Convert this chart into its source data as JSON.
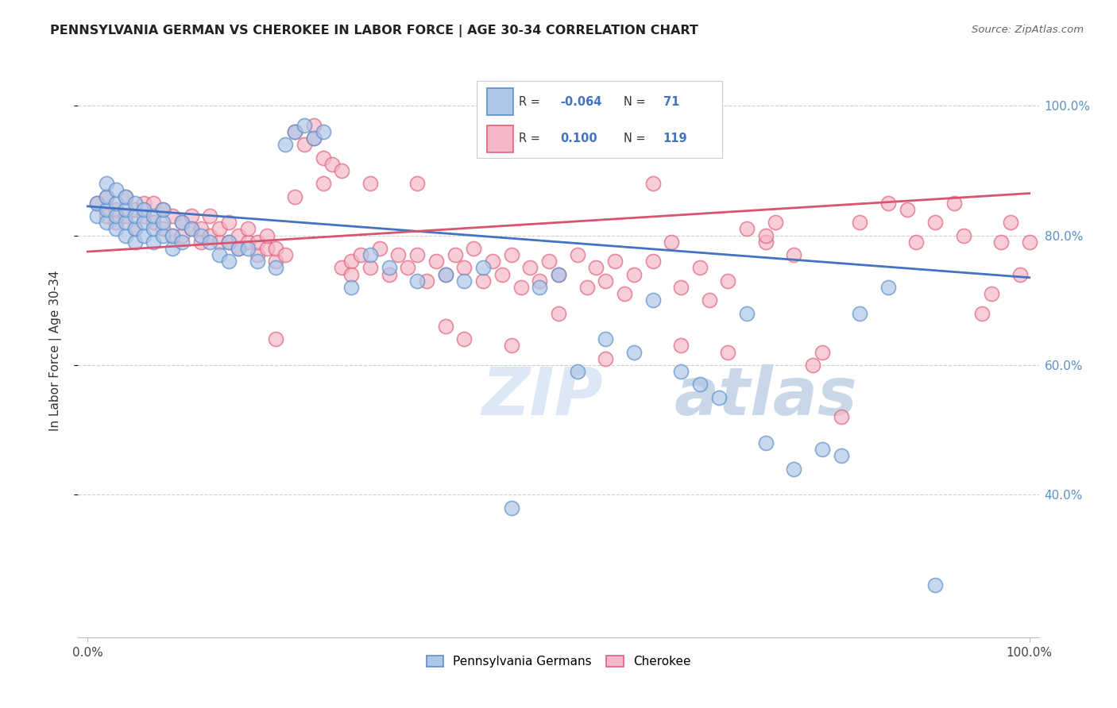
{
  "title": "PENNSYLVANIA GERMAN VS CHEROKEE IN LABOR FORCE | AGE 30-34 CORRELATION CHART",
  "source": "Source: ZipAtlas.com",
  "ylabel": "In Labor Force | Age 30-34",
  "legend_blue_label": "Pennsylvania Germans",
  "legend_pink_label": "Cherokee",
  "blue_R": -0.064,
  "blue_N": 71,
  "pink_R": 0.1,
  "pink_N": 119,
  "blue_color": "#aec6e8",
  "pink_color": "#f4b8c8",
  "blue_edge_color": "#5b8fc9",
  "pink_edge_color": "#e0607a",
  "blue_line_color": "#4472c4",
  "pink_line_color": "#d9546e",
  "watermark_zip": "ZIP",
  "watermark_atlas": "atlas",
  "blue_scatter_x": [
    0.01,
    0.01,
    0.02,
    0.02,
    0.02,
    0.02,
    0.03,
    0.03,
    0.03,
    0.03,
    0.04,
    0.04,
    0.04,
    0.04,
    0.05,
    0.05,
    0.05,
    0.05,
    0.06,
    0.06,
    0.06,
    0.07,
    0.07,
    0.07,
    0.08,
    0.08,
    0.08,
    0.09,
    0.09,
    0.1,
    0.1,
    0.11,
    0.12,
    0.13,
    0.14,
    0.15,
    0.15,
    0.16,
    0.17,
    0.18,
    0.2,
    0.21,
    0.22,
    0.23,
    0.24,
    0.25,
    0.28,
    0.3,
    0.32,
    0.35,
    0.38,
    0.4,
    0.42,
    0.45,
    0.48,
    0.5,
    0.52,
    0.55,
    0.58,
    0.6,
    0.63,
    0.65,
    0.67,
    0.7,
    0.72,
    0.75,
    0.78,
    0.8,
    0.82,
    0.85,
    0.9
  ],
  "blue_scatter_y": [
    0.83,
    0.85,
    0.82,
    0.84,
    0.86,
    0.88,
    0.81,
    0.83,
    0.85,
    0.87,
    0.8,
    0.82,
    0.84,
    0.86,
    0.79,
    0.81,
    0.83,
    0.85,
    0.8,
    0.82,
    0.84,
    0.79,
    0.81,
    0.83,
    0.8,
    0.82,
    0.84,
    0.78,
    0.8,
    0.82,
    0.79,
    0.81,
    0.8,
    0.79,
    0.77,
    0.76,
    0.79,
    0.78,
    0.78,
    0.76,
    0.75,
    0.94,
    0.96,
    0.97,
    0.95,
    0.96,
    0.72,
    0.77,
    0.75,
    0.73,
    0.74,
    0.73,
    0.75,
    0.38,
    0.72,
    0.74,
    0.59,
    0.64,
    0.62,
    0.7,
    0.59,
    0.57,
    0.55,
    0.68,
    0.48,
    0.44,
    0.47,
    0.46,
    0.68,
    0.72,
    0.26
  ],
  "pink_scatter_x": [
    0.01,
    0.02,
    0.02,
    0.03,
    0.03,
    0.04,
    0.04,
    0.05,
    0.05,
    0.06,
    0.06,
    0.07,
    0.07,
    0.08,
    0.08,
    0.09,
    0.09,
    0.1,
    0.1,
    0.11,
    0.11,
    0.12,
    0.12,
    0.13,
    0.13,
    0.14,
    0.14,
    0.15,
    0.15,
    0.16,
    0.16,
    0.17,
    0.17,
    0.18,
    0.18,
    0.19,
    0.19,
    0.2,
    0.2,
    0.21,
    0.22,
    0.23,
    0.24,
    0.24,
    0.25,
    0.26,
    0.27,
    0.28,
    0.28,
    0.29,
    0.3,
    0.31,
    0.32,
    0.33,
    0.34,
    0.35,
    0.36,
    0.37,
    0.38,
    0.39,
    0.4,
    0.41,
    0.42,
    0.43,
    0.44,
    0.45,
    0.46,
    0.47,
    0.48,
    0.49,
    0.5,
    0.52,
    0.53,
    0.54,
    0.55,
    0.56,
    0.57,
    0.58,
    0.6,
    0.62,
    0.63,
    0.65,
    0.66,
    0.68,
    0.7,
    0.72,
    0.73,
    0.75,
    0.77,
    0.78,
    0.8,
    0.82,
    0.85,
    0.87,
    0.88,
    0.9,
    0.92,
    0.93,
    0.95,
    0.96,
    0.97,
    0.98,
    0.99,
    1.0,
    0.2,
    0.22,
    0.25,
    0.27,
    0.3,
    0.35,
    0.38,
    0.4,
    0.45,
    0.5,
    0.55,
    0.6,
    0.63,
    0.68,
    0.72
  ],
  "pink_scatter_y": [
    0.85,
    0.83,
    0.86,
    0.82,
    0.84,
    0.83,
    0.86,
    0.81,
    0.84,
    0.83,
    0.85,
    0.82,
    0.85,
    0.81,
    0.84,
    0.8,
    0.83,
    0.8,
    0.82,
    0.81,
    0.83,
    0.79,
    0.81,
    0.8,
    0.83,
    0.79,
    0.81,
    0.79,
    0.82,
    0.78,
    0.8,
    0.79,
    0.81,
    0.77,
    0.79,
    0.78,
    0.8,
    0.76,
    0.78,
    0.77,
    0.96,
    0.94,
    0.95,
    0.97,
    0.92,
    0.91,
    0.75,
    0.76,
    0.74,
    0.77,
    0.75,
    0.78,
    0.74,
    0.77,
    0.75,
    0.77,
    0.73,
    0.76,
    0.74,
    0.77,
    0.75,
    0.78,
    0.73,
    0.76,
    0.74,
    0.77,
    0.72,
    0.75,
    0.73,
    0.76,
    0.74,
    0.77,
    0.72,
    0.75,
    0.73,
    0.76,
    0.71,
    0.74,
    0.76,
    0.79,
    0.72,
    0.75,
    0.7,
    0.73,
    0.81,
    0.79,
    0.82,
    0.77,
    0.6,
    0.62,
    0.52,
    0.82,
    0.85,
    0.84,
    0.79,
    0.82,
    0.85,
    0.8,
    0.68,
    0.71,
    0.79,
    0.82,
    0.74,
    0.79,
    0.64,
    0.86,
    0.88,
    0.9,
    0.88,
    0.88,
    0.66,
    0.64,
    0.63,
    0.68,
    0.61,
    0.88,
    0.63,
    0.62,
    0.8
  ]
}
